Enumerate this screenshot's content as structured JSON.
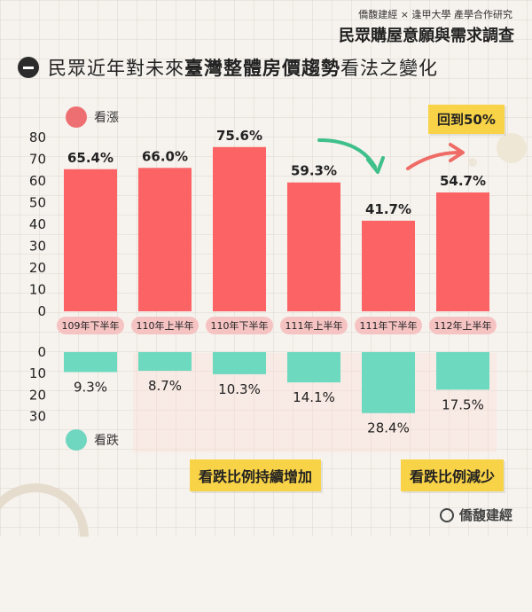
{
  "header": {
    "source": "僑馥建經 × 逢甲大學 產學合作研究",
    "survey_title": "民眾購屋意願與需求調查",
    "headline_prefix": "民眾近年對未來",
    "headline_bold": "臺灣整體房價趨勢",
    "headline_suffix": "看法之變化"
  },
  "annotations": {
    "return_label": "回到50%",
    "rising_label": "看跌比例持續增加",
    "falling_label": "看跌比例減少"
  },
  "brand": {
    "name": "僑馥建經"
  },
  "colors": {
    "up": "#fb6365",
    "down": "#6dd9bf",
    "note": "#f8d247",
    "arrow_green": "#3fbf8a",
    "arrow_red": "#ef6b66"
  },
  "chart_data": {
    "type": "bar",
    "categories": [
      "109年下半年",
      "110年上半年",
      "110年下半年",
      "111年上半年",
      "111年下半年",
      "112年上半年"
    ],
    "series": [
      {
        "name": "看漲",
        "values": [
          65.4,
          66.0,
          75.6,
          59.3,
          41.7,
          54.7
        ],
        "ylim": [
          0,
          80
        ],
        "ticks": [
          0,
          10,
          20,
          30,
          40,
          50,
          60,
          70,
          80
        ]
      },
      {
        "name": "看跌",
        "values": [
          9.3,
          8.7,
          10.3,
          14.1,
          28.4,
          17.5
        ],
        "ylim": [
          0,
          30
        ],
        "ticks": [
          0,
          10,
          20,
          30
        ],
        "direction": "downward"
      }
    ]
  }
}
